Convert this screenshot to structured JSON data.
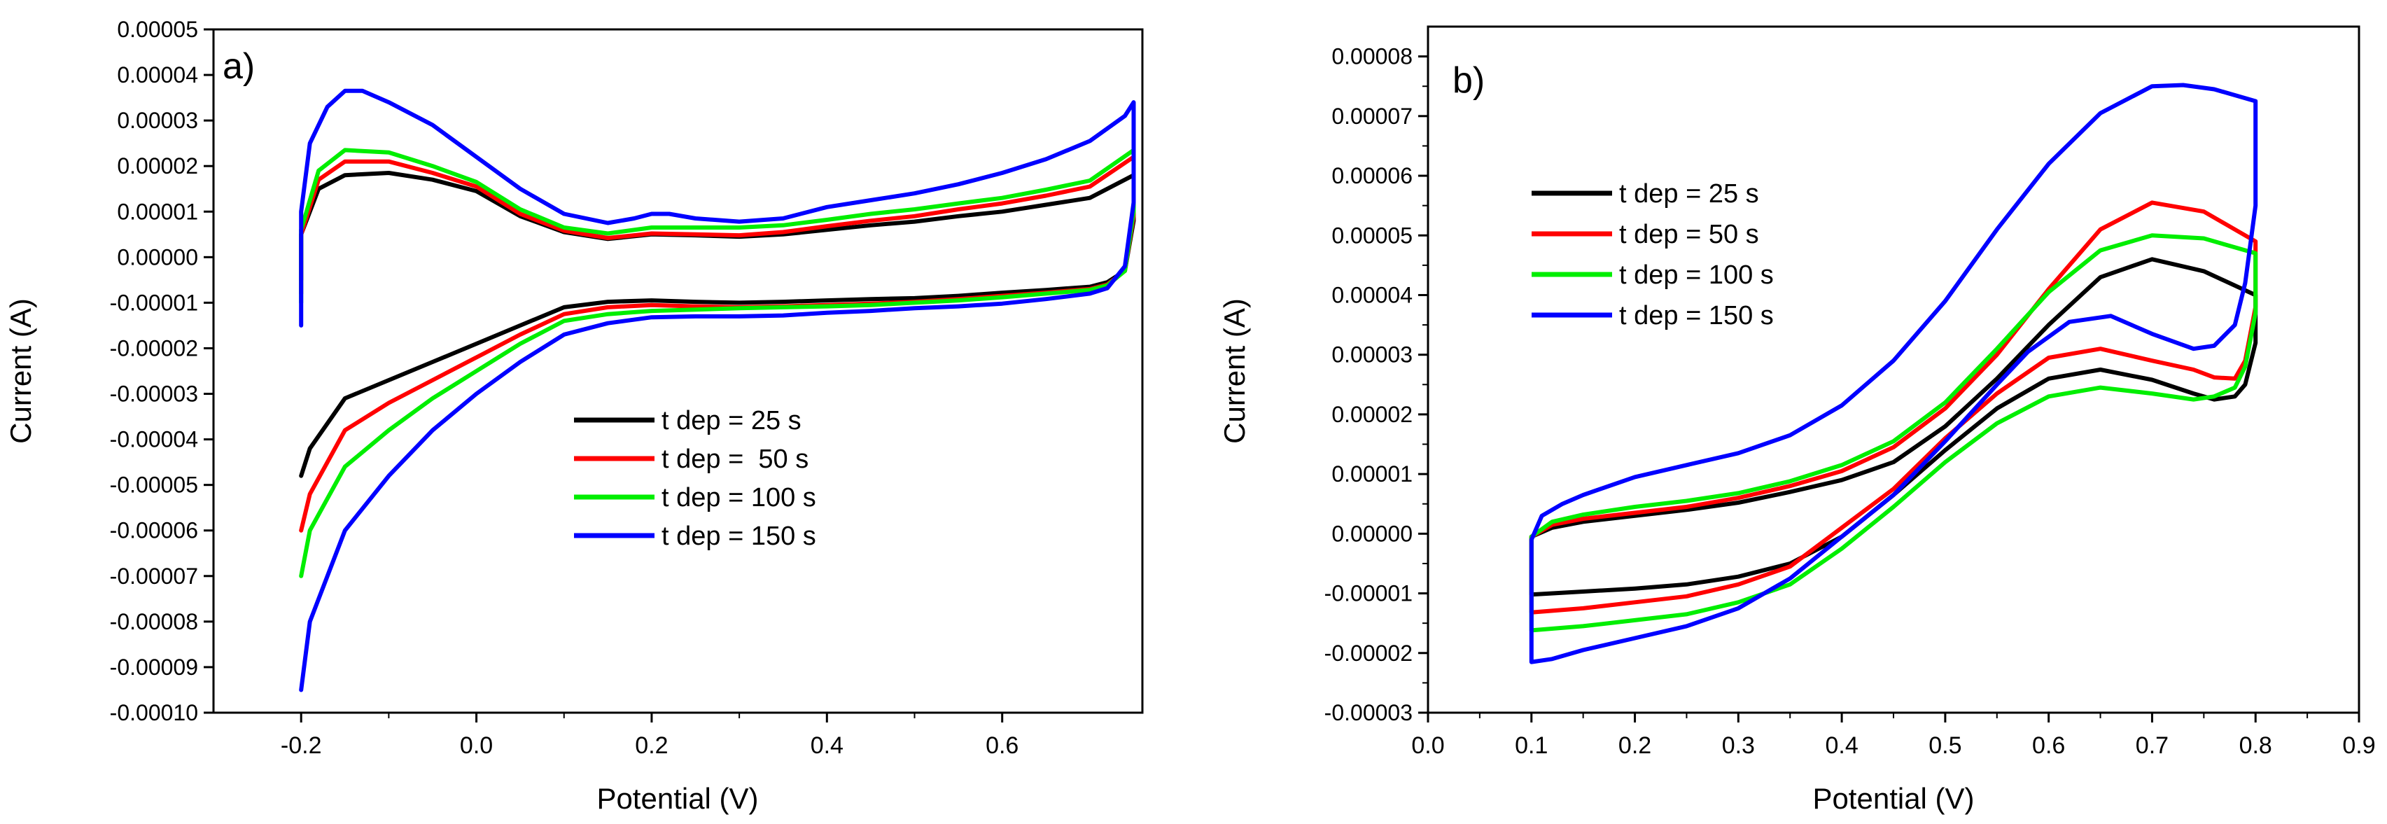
{
  "chart_data": [
    {
      "type": "line",
      "panel_label": "a)",
      "xlabel": "Potential (V)",
      "ylabel": "Current (A)",
      "xlim": [
        -0.3,
        0.76
      ],
      "ylim": [
        -0.0001,
        5e-05
      ],
      "x_ticks": [
        -0.2,
        0.0,
        0.2,
        0.4,
        0.6
      ],
      "x_tick_labels": [
        "-0.2",
        "0.0",
        "0.2",
        "0.4",
        "0.6"
      ],
      "y_ticks": [
        5e-05,
        4e-05,
        3e-05,
        2e-05,
        1e-05,
        0.0,
        -1e-05,
        -2e-05,
        -3e-05,
        -4e-05,
        -5e-05,
        -6e-05,
        -7e-05,
        -8e-05,
        -9e-05,
        -0.0001
      ],
      "y_tick_labels": [
        "0.00005",
        "0.00004",
        "0.00003",
        "0.00002",
        "0.00001",
        "0.00000",
        "-0.00001",
        "-0.00002",
        "-0.00003",
        "-0.00004",
        "-0.00005",
        "-0.00006",
        "-0.00007",
        "-0.00008",
        "-0.00009",
        "-0.00010"
      ],
      "legend_position": "center-right",
      "series": [
        {
          "name": "t dep = 25 s",
          "color": "#000000",
          "x": [
            -0.2,
            -0.2,
            -0.18,
            -0.15,
            -0.1,
            -0.05,
            0.0,
            0.05,
            0.1,
            0.15,
            0.2,
            0.25,
            0.3,
            0.35,
            0.4,
            0.45,
            0.5,
            0.55,
            0.6,
            0.65,
            0.7,
            0.75,
            0.75,
            0.74,
            0.72,
            0.7,
            0.65,
            0.6,
            0.55,
            0.5,
            0.45,
            0.4,
            0.35,
            0.3,
            0.25,
            0.2,
            0.15,
            0.1,
            0.05,
            0.0,
            -0.05,
            -0.1,
            -0.15,
            -0.19,
            -0.2
          ],
          "y": [
            -5e-06,
            5e-06,
            1.5e-05,
            1.8e-05,
            1.85e-05,
            1.7e-05,
            1.45e-05,
            9e-06,
            5.5e-06,
            4e-06,
            5e-06,
            4.8e-06,
            4.5e-06,
            5e-06,
            6e-06,
            7e-06,
            7.8e-06,
            9e-06,
            1e-05,
            1.15e-05,
            1.3e-05,
            1.8e-05,
            8e-06,
            -3e-06,
            -5.5e-06,
            -6.5e-06,
            -7.2e-06,
            -7.8e-06,
            -8.5e-06,
            -9e-06,
            -9.2e-06,
            -9.5e-06,
            -9.8e-06,
            -1e-05,
            -9.8e-06,
            -9.5e-06,
            -9.8e-06,
            -1.1e-05,
            -1.5e-05,
            -1.9e-05,
            -2.3e-05,
            -2.7e-05,
            -3.1e-05,
            -4.2e-05,
            -4.8e-05
          ]
        },
        {
          "name": "t dep =  50 s",
          "color": "#ff0000",
          "x": [
            -0.2,
            -0.2,
            -0.18,
            -0.15,
            -0.1,
            -0.05,
            0.0,
            0.05,
            0.1,
            0.15,
            0.2,
            0.25,
            0.3,
            0.35,
            0.4,
            0.45,
            0.5,
            0.55,
            0.6,
            0.65,
            0.7,
            0.75,
            0.75,
            0.74,
            0.72,
            0.7,
            0.65,
            0.6,
            0.55,
            0.5,
            0.45,
            0.4,
            0.35,
            0.3,
            0.25,
            0.2,
            0.15,
            0.1,
            0.05,
            0.0,
            -0.05,
            -0.1,
            -0.15,
            -0.19,
            -0.2
          ],
          "y": [
            -8e-06,
            5e-06,
            1.7e-05,
            2.1e-05,
            2.1e-05,
            1.85e-05,
            1.55e-05,
            9.5e-06,
            5.8e-06,
            4.2e-06,
            5.2e-06,
            5e-06,
            4.8e-06,
            5.5e-06,
            6.8e-06,
            8e-06,
            9e-06,
            1.05e-05,
            1.18e-05,
            1.35e-05,
            1.55e-05,
            2.2e-05,
            9e-06,
            -3e-06,
            -6e-06,
            -7e-06,
            -7.8e-06,
            -8.5e-06,
            -9.2e-06,
            -9.8e-06,
            -1.02e-05,
            -1.05e-05,
            -1.08e-05,
            -1.1e-05,
            -1.08e-05,
            -1.05e-05,
            -1.1e-05,
            -1.25e-05,
            -1.7e-05,
            -2.2e-05,
            -2.7e-05,
            -3.2e-05,
            -3.8e-05,
            -5.2e-05,
            -6e-05
          ]
        },
        {
          "name": "t dep = 100 s",
          "color": "#00ee00",
          "x": [
            -0.2,
            -0.2,
            -0.18,
            -0.15,
            -0.1,
            -0.05,
            0.0,
            0.05,
            0.1,
            0.15,
            0.2,
            0.25,
            0.3,
            0.35,
            0.4,
            0.45,
            0.5,
            0.55,
            0.6,
            0.65,
            0.7,
            0.75,
            0.75,
            0.74,
            0.72,
            0.7,
            0.65,
            0.6,
            0.55,
            0.5,
            0.45,
            0.4,
            0.35,
            0.3,
            0.25,
            0.2,
            0.15,
            0.1,
            0.05,
            0.0,
            -0.05,
            -0.1,
            -0.15,
            -0.19,
            -0.2
          ],
          "y": [
            -1e-05,
            6e-06,
            1.9e-05,
            2.35e-05,
            2.3e-05,
            2e-05,
            1.65e-05,
            1.05e-05,
            6.5e-06,
            5.2e-06,
            6.5e-06,
            6.5e-06,
            6.5e-06,
            7e-06,
            8.2e-06,
            9.5e-06,
            1.05e-05,
            1.18e-05,
            1.3e-05,
            1.48e-05,
            1.68e-05,
            2.35e-05,
            1e-05,
            -3e-06,
            -6.2e-06,
            -7.2e-06,
            -8e-06,
            -8.8e-06,
            -9.5e-06,
            -1e-05,
            -1.05e-05,
            -1.08e-05,
            -1.1e-05,
            -1.12e-05,
            -1.15e-05,
            -1.18e-05,
            -1.25e-05,
            -1.4e-05,
            -1.9e-05,
            -2.5e-05,
            -3.1e-05,
            -3.8e-05,
            -4.6e-05,
            -6e-05,
            -7e-05
          ]
        },
        {
          "name": "t dep = 150 s",
          "color": "#0000ff",
          "x": [
            -0.2,
            -0.2,
            -0.19,
            -0.17,
            -0.15,
            -0.13,
            -0.1,
            -0.05,
            0.0,
            0.05,
            0.1,
            0.15,
            0.18,
            0.2,
            0.22,
            0.25,
            0.3,
            0.35,
            0.4,
            0.45,
            0.5,
            0.55,
            0.6,
            0.65,
            0.7,
            0.74,
            0.75,
            0.75,
            0.74,
            0.72,
            0.7,
            0.65,
            0.6,
            0.55,
            0.5,
            0.45,
            0.4,
            0.35,
            0.3,
            0.25,
            0.2,
            0.15,
            0.1,
            0.05,
            0.0,
            -0.05,
            -0.1,
            -0.15,
            -0.19,
            -0.2
          ],
          "y": [
            -1.5e-05,
            1e-05,
            2.5e-05,
            3.3e-05,
            3.65e-05,
            3.65e-05,
            3.4e-05,
            2.9e-05,
            2.2e-05,
            1.5e-05,
            9.5e-06,
            7.5e-06,
            8.5e-06,
            9.5e-06,
            9.5e-06,
            8.5e-06,
            7.8e-06,
            8.5e-06,
            1.1e-05,
            1.25e-05,
            1.4e-05,
            1.6e-05,
            1.85e-05,
            2.15e-05,
            2.55e-05,
            3.1e-05,
            3.4e-05,
            1.2e-05,
            -2e-06,
            -6.8e-06,
            -8e-06,
            -9.2e-06,
            -1.02e-05,
            -1.08e-05,
            -1.12e-05,
            -1.18e-05,
            -1.22e-05,
            -1.28e-05,
            -1.3e-05,
            -1.3e-05,
            -1.32e-05,
            -1.45e-05,
            -1.7e-05,
            -2.3e-05,
            -3e-05,
            -3.8e-05,
            -4.8e-05,
            -6e-05,
            -8e-05,
            -9.5e-05
          ]
        }
      ]
    },
    {
      "type": "line",
      "panel_label": "b)",
      "xlabel": "Potential (V)",
      "ylabel": "Current (A)",
      "xlim": [
        0.0,
        0.9
      ],
      "ylim": [
        -3e-05,
        8.5e-05
      ],
      "x_ticks": [
        0.0,
        0.1,
        0.2,
        0.3,
        0.4,
        0.5,
        0.6,
        0.7,
        0.8,
        0.9
      ],
      "x_tick_labels": [
        "0.0",
        "0.1",
        "0.2",
        "0.3",
        "0.4",
        "0.5",
        "0.6",
        "0.7",
        "0.8",
        "0.9"
      ],
      "y_ticks": [
        8e-05,
        7e-05,
        6e-05,
        5e-05,
        4e-05,
        3e-05,
        2e-05,
        1e-05,
        0.0,
        -1e-05,
        -2e-05,
        -3e-05
      ],
      "y_tick_labels": [
        "0.00008",
        "0.00007",
        "0.00006",
        "0.00005",
        "0.00004",
        "0.00003",
        "0.00002",
        "0.00001",
        "0.00000",
        "-0.00001",
        "-0.00002",
        "-0.00003"
      ],
      "legend_position": "top-left",
      "series": [
        {
          "name": "t dep = 25 s",
          "color": "#000000",
          "x": [
            0.1,
            0.1,
            0.12,
            0.15,
            0.2,
            0.25,
            0.3,
            0.35,
            0.4,
            0.45,
            0.5,
            0.55,
            0.6,
            0.65,
            0.7,
            0.75,
            0.8,
            0.8,
            0.79,
            0.78,
            0.76,
            0.74,
            0.7,
            0.65,
            0.6,
            0.55,
            0.5,
            0.45,
            0.4,
            0.35,
            0.3,
            0.25,
            0.2,
            0.15,
            0.1,
            0.1
          ],
          "y": [
            -1e-05,
            -5e-07,
            1e-06,
            2e-06,
            3e-06,
            4e-06,
            5.2e-06,
            7e-06,
            9e-06,
            1.2e-05,
            1.8e-05,
            2.6e-05,
            3.5e-05,
            4.3e-05,
            4.6e-05,
            4.4e-05,
            4e-05,
            3.2e-05,
            2.5e-05,
            2.3e-05,
            2.25e-05,
            2.35e-05,
            2.58e-05,
            2.75e-05,
            2.6e-05,
            2.1e-05,
            1.4e-05,
            6.5e-06,
            -5e-07,
            -5e-06,
            -7.2e-06,
            -8.5e-06,
            -9.2e-06,
            -9.7e-06,
            -1.02e-05,
            -1e-05
          ]
        },
        {
          "name": "t dep = 50 s",
          "color": "#ff0000",
          "x": [
            0.1,
            0.1,
            0.12,
            0.15,
            0.2,
            0.25,
            0.3,
            0.35,
            0.4,
            0.45,
            0.5,
            0.55,
            0.6,
            0.65,
            0.7,
            0.75,
            0.8,
            0.8,
            0.79,
            0.78,
            0.76,
            0.74,
            0.7,
            0.65,
            0.6,
            0.55,
            0.5,
            0.45,
            0.4,
            0.35,
            0.3,
            0.25,
            0.2,
            0.15,
            0.1,
            0.1
          ],
          "y": [
            -1.3e-05,
            -5e-07,
            1.5e-06,
            2.5e-06,
            3.5e-06,
            4.5e-06,
            6e-06,
            8e-06,
            1.05e-05,
            1.45e-05,
            2.1e-05,
            3e-05,
            4.1e-05,
            5.1e-05,
            5.55e-05,
            5.4e-05,
            4.9e-05,
            3.8e-05,
            2.9e-05,
            2.6e-05,
            2.62e-05,
            2.75e-05,
            2.9e-05,
            3.1e-05,
            2.95e-05,
            2.35e-05,
            1.6e-05,
            7.5e-06,
            1e-06,
            -5.5e-06,
            -8.5e-06,
            -1.05e-05,
            -1.15e-05,
            -1.25e-05,
            -1.32e-05,
            -1.3e-05
          ]
        },
        {
          "name": "t dep = 100 s",
          "color": "#00ee00",
          "x": [
            0.1,
            0.1,
            0.12,
            0.15,
            0.2,
            0.25,
            0.3,
            0.35,
            0.4,
            0.45,
            0.5,
            0.55,
            0.6,
            0.65,
            0.7,
            0.75,
            0.8,
            0.8,
            0.79,
            0.78,
            0.76,
            0.74,
            0.7,
            0.65,
            0.6,
            0.55,
            0.5,
            0.45,
            0.4,
            0.35,
            0.3,
            0.25,
            0.2,
            0.15,
            0.1,
            0.1
          ],
          "y": [
            -1.6e-05,
            -5e-07,
            2e-06,
            3.2e-06,
            4.5e-06,
            5.5e-06,
            6.8e-06,
            8.8e-06,
            1.15e-05,
            1.55e-05,
            2.2e-05,
            3.1e-05,
            4.05e-05,
            4.75e-05,
            5e-05,
            4.95e-05,
            4.7e-05,
            3.7e-05,
            2.8e-05,
            2.45e-05,
            2.3e-05,
            2.25e-05,
            2.35e-05,
            2.45e-05,
            2.3e-05,
            1.85e-05,
            1.2e-05,
            4.5e-06,
            -2.5e-06,
            -8.5e-06,
            -1.15e-05,
            -1.35e-05,
            -1.45e-05,
            -1.55e-05,
            -1.62e-05,
            -1.6e-05
          ]
        },
        {
          "name": "t dep = 150 s",
          "color": "#0000ff",
          "x": [
            0.1,
            0.1,
            0.11,
            0.13,
            0.15,
            0.2,
            0.25,
            0.3,
            0.35,
            0.4,
            0.45,
            0.5,
            0.55,
            0.6,
            0.65,
            0.7,
            0.73,
            0.76,
            0.8,
            0.8,
            0.79,
            0.78,
            0.76,
            0.74,
            0.7,
            0.66,
            0.62,
            0.58,
            0.55,
            0.5,
            0.45,
            0.4,
            0.35,
            0.3,
            0.25,
            0.2,
            0.15,
            0.12,
            0.1,
            0.1
          ],
          "y": [
            -2.1e-05,
            -1e-06,
            3e-06,
            5e-06,
            6.5e-06,
            9.5e-06,
            1.15e-05,
            1.35e-05,
            1.65e-05,
            2.15e-05,
            2.9e-05,
            3.9e-05,
            5.1e-05,
            6.2e-05,
            7.05e-05,
            7.5e-05,
            7.52e-05,
            7.45e-05,
            7.25e-05,
            5.5e-05,
            4.2e-05,
            3.5e-05,
            3.15e-05,
            3.1e-05,
            3.35e-05,
            3.65e-05,
            3.55e-05,
            3.05e-05,
            2.5e-05,
            1.55e-05,
            6.5e-06,
            -5e-07,
            -7.5e-06,
            -1.25e-05,
            -1.55e-05,
            -1.75e-05,
            -1.95e-05,
            -2.1e-05,
            -2.15e-05,
            -2.1e-05
          ]
        }
      ]
    }
  ]
}
